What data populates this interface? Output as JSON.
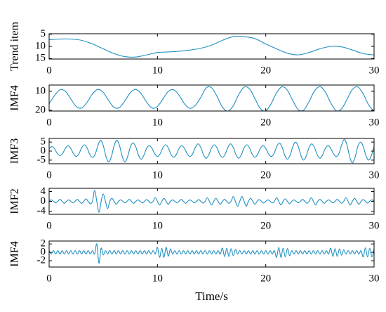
{
  "chart_data": [
    {
      "type": "line",
      "ylabel": "Trend item",
      "color": "#1f8fc0",
      "x": [
        0,
        1,
        2,
        3,
        4,
        5,
        6,
        7,
        8,
        9,
        10,
        11,
        12,
        13,
        14,
        15,
        16,
        17,
        18,
        19,
        20,
        21,
        22,
        23,
        24,
        25,
        26,
        27,
        28,
        29,
        30
      ],
      "values": [
        7.2,
        7,
        7,
        7.5,
        9,
        11,
        13,
        14.2,
        14.4,
        13.5,
        12.5,
        12.3,
        12,
        11.5,
        10.8,
        9.5,
        7.5,
        6,
        6,
        6.8,
        9,
        11,
        12.8,
        13.5,
        12.5,
        11,
        10,
        10.2,
        11.5,
        13,
        13.5
      ],
      "xlim": [
        0,
        30
      ],
      "xticks": [
        0,
        10,
        20,
        30
      ],
      "ylim": [
        15.2,
        4.8
      ],
      "yticks": [
        5,
        10,
        15
      ]
    },
    {
      "type": "line",
      "ylabel": "IMF4",
      "color": "#1f8fc0",
      "x": [
        0,
        0.5,
        1,
        1.5,
        2,
        2.5,
        3,
        3.5,
        4,
        4.5,
        5,
        5.5,
        6,
        6.5,
        7,
        7.5,
        8,
        8.5,
        9,
        9.5,
        10,
        10.5,
        11,
        11.5,
        12,
        12.5,
        13,
        13.5,
        14,
        14.5,
        15,
        15.5,
        16,
        16.5,
        17,
        17.5,
        18,
        18.5,
        19,
        19.5,
        20,
        20.5,
        21,
        21.5,
        22,
        22.5,
        23,
        23.5,
        24,
        24.5,
        25,
        25.5,
        26,
        26.5,
        27,
        27.5,
        28,
        28.5,
        29,
        29.5,
        30
      ],
      "values": [
        16.6,
        12.2,
        9.2,
        10.0,
        14.0,
        18.0,
        18.8,
        15.8,
        11.4,
        9.0,
        10.6,
        14.9,
        18.5,
        18.5,
        15.0,
        10.7,
        9.0,
        11.3,
        15.7,
        18.8,
        18.0,
        14.1,
        10.1,
        9.2,
        12.1,
        16.6,
        19.0,
        17.4,
        13.2,
        8.2,
        8.1,
        12.7,
        18.3,
        20.5,
        17.6,
        11.8,
        7.8,
        8.7,
        13.8,
        19.1,
        20.3,
        16.5,
        10.8,
        7.6,
        9.5,
        15.0,
        19.7,
        19.9,
        15.4,
        9.8,
        7.5,
        10.4,
        16.1,
        20.2,
        19.3,
        14.3,
        9.0,
        7.7,
        11.4,
        17.2,
        20.4
      ],
      "xlim": [
        0,
        30
      ],
      "xticks": [
        0,
        10,
        20,
        30
      ],
      "ylim": [
        20.4,
        6.7
      ],
      "yticks": [
        10,
        20
      ]
    },
    {
      "type": "line",
      "ylabel": "IMF3",
      "color": "#1f8fc0",
      "x": [
        0,
        0.25,
        0.5,
        0.75,
        1,
        1.25,
        1.5,
        1.75,
        2,
        2.25,
        2.5,
        2.75,
        3,
        3.25,
        3.5,
        3.75,
        4,
        4.25,
        4.5,
        4.75,
        5,
        5.25,
        5.5,
        5.75,
        6,
        6.25,
        6.5,
        6.75,
        7,
        7.25,
        7.5,
        7.75,
        8,
        8.25,
        8.5,
        8.75,
        9,
        9.25,
        9.5,
        9.75,
        10,
        10.25,
        10.5,
        10.75,
        11,
        11.25,
        11.5,
        11.75,
        12,
        12.25,
        12.5,
        12.75,
        13,
        13.25,
        13.5,
        13.75,
        14,
        14.25,
        14.5,
        14.75,
        15,
        15.25,
        15.5,
        15.75,
        16,
        16.25,
        16.5,
        16.75,
        17,
        17.25,
        17.5,
        17.75,
        18,
        18.25,
        18.5,
        18.75,
        19,
        19.25,
        19.5,
        19.75,
        20,
        20.25,
        20.5,
        20.75,
        21,
        21.25,
        21.5,
        21.75,
        22,
        22.25,
        22.5,
        22.75,
        23,
        23.25,
        23.5,
        23.75,
        24,
        24.25,
        24.5,
        24.75,
        25,
        25.25,
        25.5,
        25.75,
        26,
        26.25,
        26.5,
        26.75,
        27,
        27.25,
        27.5,
        27.75,
        28,
        28.25,
        28.5,
        28.75,
        29,
        29.25,
        29.5,
        29.75,
        30
      ],
      "values": [
        1.3,
        2.5,
        1.3,
        -1.3,
        -2.5,
        -1.3,
        1.5,
        3,
        1.5,
        -1.5,
        -3,
        -1.5,
        1.8,
        3.5,
        1.8,
        -1.8,
        -3.5,
        -1.8,
        3,
        6,
        3,
        -3,
        -6,
        -3,
        3,
        6,
        3,
        -3,
        -6,
        -3,
        2.3,
        4.5,
        2.3,
        -2.3,
        -4.5,
        -2.3,
        1.5,
        3,
        1.5,
        -1.5,
        -3,
        -1.5,
        1.8,
        3.5,
        1.8,
        -1.8,
        -3.5,
        -1.8,
        1.5,
        3,
        1.5,
        -1.5,
        -3,
        -1.5,
        2,
        4,
        2,
        -2,
        -4,
        -2,
        1.8,
        3.5,
        1.8,
        -1.8,
        -3.5,
        -1.8,
        2,
        4,
        2,
        -2,
        -4,
        -2,
        1.8,
        3.5,
        1.8,
        -1.8,
        -3.5,
        -1.8,
        1.5,
        3,
        1.5,
        -1.5,
        -3,
        -1.5,
        2.3,
        4.5,
        2.3,
        -2.3,
        -4.5,
        -2.3,
        2.5,
        5,
        2.5,
        -2.5,
        -5,
        -2.5,
        2,
        4,
        2,
        -2,
        -4,
        -2,
        1.5,
        3,
        1.5,
        -1.5,
        -3,
        -1.5,
        3.3,
        6.5,
        3.3,
        -3.3,
        -6.5,
        -3.3,
        2.5,
        5,
        2.5,
        -2.5,
        -5,
        -2.5,
        2.5
      ],
      "xlim": [
        0,
        30
      ],
      "xticks": [
        0,
        10,
        20,
        30
      ],
      "ylim": [
        -7,
        7
      ],
      "yticks": [
        -5,
        0,
        5
      ]
    },
    {
      "type": "line",
      "ylabel": "IMF2",
      "color": "#1f8fc0",
      "x": [
        0,
        0.2,
        0.4,
        0.6,
        0.8,
        1,
        1.2,
        1.4,
        1.6,
        1.8,
        2,
        2.2,
        2.4,
        2.6,
        2.8,
        3,
        3.2,
        3.4,
        3.6,
        3.8,
        4,
        4.2,
        4.4,
        4.6,
        4.8,
        5,
        5.2,
        5.4,
        5.6,
        5.8,
        6,
        6.2,
        6.4,
        6.6,
        6.8,
        7,
        7.2,
        7.4,
        7.6,
        7.8,
        8,
        8.2,
        8.4,
        8.6,
        8.8,
        9,
        9.2,
        9.4,
        9.6,
        9.8,
        10,
        10.2,
        10.4,
        10.6,
        10.8,
        11,
        11.2,
        11.4,
        11.6,
        11.8,
        12,
        12.2,
        12.4,
        12.6,
        12.8,
        13,
        13.2,
        13.4,
        13.6,
        13.8,
        14,
        14.2,
        14.4,
        14.6,
        14.8,
        15,
        15.2,
        15.4,
        15.6,
        15.8,
        16,
        16.2,
        16.4,
        16.6,
        16.8,
        17,
        17.2,
        17.4,
        17.6,
        17.8,
        18,
        18.2,
        18.4,
        18.6,
        18.8,
        19,
        19.2,
        19.4,
        19.6,
        19.8,
        20,
        20.2,
        20.4,
        20.6,
        20.8,
        21,
        21.2,
        21.4,
        21.6,
        21.8,
        22,
        22.2,
        22.4,
        22.6,
        22.8,
        23,
        23.2,
        23.4,
        23.6,
        23.8,
        24,
        24.2,
        24.4,
        24.6,
        24.8,
        25,
        25.2,
        25.4,
        25.6,
        25.8,
        26,
        26.2,
        26.4,
        26.6,
        26.8,
        27,
        27.2,
        27.4,
        27.6,
        27.8,
        28,
        28.2,
        28.4,
        28.6,
        28.8,
        29,
        29.2,
        29.4,
        29.6,
        29.8,
        30
      ],
      "values": [
        0,
        0.6,
        0,
        -0.6,
        0,
        0.8,
        0,
        -0.8,
        0,
        0.6,
        0,
        -0.6,
        0,
        0.8,
        0,
        -0.8,
        0,
        1,
        0,
        -1,
        0,
        4.5,
        0,
        -4.5,
        0,
        3,
        0,
        -3,
        0,
        1.2,
        0,
        -1.2,
        0,
        0.6,
        0,
        -0.6,
        0,
        0.8,
        0,
        -0.8,
        0,
        0.6,
        0,
        -0.6,
        0,
        0.7,
        0,
        -0.7,
        0,
        1.5,
        0,
        -1.5,
        0,
        1.2,
        0,
        -1.2,
        0,
        0.6,
        0,
        -0.6,
        0,
        0.8,
        0,
        -0.8,
        0,
        0.6,
        0,
        -0.6,
        0,
        0.7,
        0,
        -0.7,
        0,
        1.5,
        0,
        -1.5,
        0,
        1.2,
        0,
        -1.2,
        0,
        0.8,
        0,
        -0.8,
        0,
        2,
        0,
        -2,
        0,
        2,
        0,
        -2,
        0,
        1.2,
        0,
        -1.2,
        0,
        0.7,
        0,
        -0.7,
        0,
        0.6,
        0,
        -0.6,
        0,
        1.5,
        0,
        -1.5,
        0,
        1,
        0,
        -1,
        0,
        0.6,
        0,
        -0.6,
        0,
        0.8,
        0,
        -0.8,
        0,
        1.5,
        0,
        -1.5,
        0,
        0.8,
        0,
        -0.8,
        0,
        0.6,
        0,
        -0.6,
        0,
        0.8,
        0,
        -0.8,
        0,
        1.5,
        0,
        -1.5,
        0,
        1.2,
        0,
        -1.2,
        0,
        0.7,
        0,
        -0.7,
        0,
        0.6,
        0
      ],
      "xlim": [
        0,
        30
      ],
      "xticks": [
        0,
        10,
        20,
        30
      ],
      "ylim": [
        -5.3,
        5.3
      ],
      "yticks": [
        -4,
        0,
        4
      ]
    },
    {
      "type": "line",
      "ylabel": "IMF4",
      "xlabel": "Time/s",
      "color": "#1f8fc0",
      "x": [
        0,
        0.2,
        0.4,
        0.6,
        0.8,
        1,
        1.2,
        1.4,
        1.6,
        1.8,
        2,
        2.2,
        2.4,
        2.6,
        2.8,
        3,
        3.2,
        3.4,
        3.6,
        3.8,
        4,
        4.2,
        4.4,
        4.6,
        4.8,
        5,
        5.2,
        5.4,
        5.6,
        5.8,
        6,
        6.2,
        6.4,
        6.6,
        6.8,
        7,
        7.2,
        7.4,
        7.6,
        7.8,
        8,
        8.2,
        8.4,
        8.6,
        8.8,
        9,
        9.2,
        9.4,
        9.6,
        9.8,
        10,
        10.2,
        10.4,
        10.6,
        10.8,
        11,
        11.2,
        11.4,
        11.6,
        11.8,
        12,
        12.2,
        12.4,
        12.6,
        12.8,
        13,
        13.2,
        13.4,
        13.6,
        13.8,
        14,
        14.2,
        14.4,
        14.6,
        14.8,
        15,
        15.2,
        15.4,
        15.6,
        15.8,
        16,
        16.2,
        16.4,
        16.6,
        16.8,
        17,
        17.2,
        17.4,
        17.6,
        17.8,
        18,
        18.2,
        18.4,
        18.6,
        18.8,
        19,
        19.2,
        19.4,
        19.6,
        19.8,
        20,
        20.2,
        20.4,
        20.6,
        20.8,
        21,
        21.2,
        21.4,
        21.6,
        21.8,
        22,
        22.2,
        22.4,
        22.6,
        22.8,
        23,
        23.2,
        23.4,
        23.6,
        23.8,
        24,
        24.2,
        24.4,
        24.6,
        24.8,
        25,
        25.2,
        25.4,
        25.6,
        25.8,
        26,
        26.2,
        26.4,
        26.6,
        26.8,
        27,
        27.2,
        27.4,
        27.6,
        27.8,
        28,
        28.2,
        28.4,
        28.6,
        28.8,
        29,
        29.2,
        29.4,
        29.6,
        29.8,
        30
      ],
      "values": [
        0.4,
        -0.4,
        0.4,
        -0.4,
        0.4,
        -0.4,
        0.4,
        -0.4,
        0.4,
        -0.4,
        0.4,
        -0.4,
        0.4,
        -0.4,
        0.4,
        -0.4,
        0.4,
        -0.4,
        0.4,
        -0.4,
        0.4,
        -0.4,
        2,
        -2.6,
        1,
        -0.6,
        0.4,
        -0.4,
        0.4,
        -0.4,
        0.4,
        -0.4,
        0.4,
        -0.4,
        0.4,
        -0.4,
        0.4,
        -0.4,
        0.4,
        -0.4,
        0.4,
        -0.4,
        0.4,
        -0.4,
        0.4,
        -0.4,
        0.4,
        -0.4,
        0.4,
        -0.4,
        1.2,
        -1.2,
        1.0,
        -1.2,
        1.2,
        -0.9,
        0.8,
        -0.4,
        0.4,
        -0.4,
        0.4,
        -0.4,
        0.4,
        -0.4,
        0.4,
        -0.4,
        0.4,
        -0.4,
        0.4,
        -0.4,
        0.4,
        -0.4,
        0.4,
        -0.4,
        0.4,
        -0.4,
        0.4,
        -0.4,
        0.4,
        -0.4,
        1.0,
        -1.0,
        1.0,
        -1.0,
        0.9,
        -0.8,
        0.7,
        -0.4,
        0.4,
        -0.4,
        0.4,
        -0.4,
        0.4,
        -0.4,
        0.4,
        -0.4,
        0.4,
        -0.4,
        0.4,
        -0.4,
        0.4,
        -0.4,
        0.4,
        -0.4,
        0.4,
        -1.2,
        1.2,
        -1.2,
        1.0,
        -1.1,
        0.9,
        -0.8,
        0.4,
        -0.4,
        0.4,
        -0.4,
        0.4,
        -0.4,
        0.4,
        -0.4,
        0.4,
        -0.4,
        0.4,
        -0.4,
        0.4,
        -0.4,
        0.4,
        -0.4,
        0.4,
        -0.4,
        1.0,
        -1.0,
        0.9,
        -1.0,
        0.8,
        -0.7,
        0.6,
        -0.4,
        0.4,
        -0.4,
        0.4,
        -0.4,
        0.4,
        -0.4,
        0.4,
        -1.1,
        1.1,
        -1.1,
        1.0,
        -1.1,
        0.9
      ],
      "xlim": [
        0,
        30
      ],
      "xticks": [
        0,
        10,
        20,
        30
      ],
      "ylim": [
        -3.5,
        2.7
      ],
      "yticks": [
        -2,
        0,
        2
      ]
    }
  ]
}
